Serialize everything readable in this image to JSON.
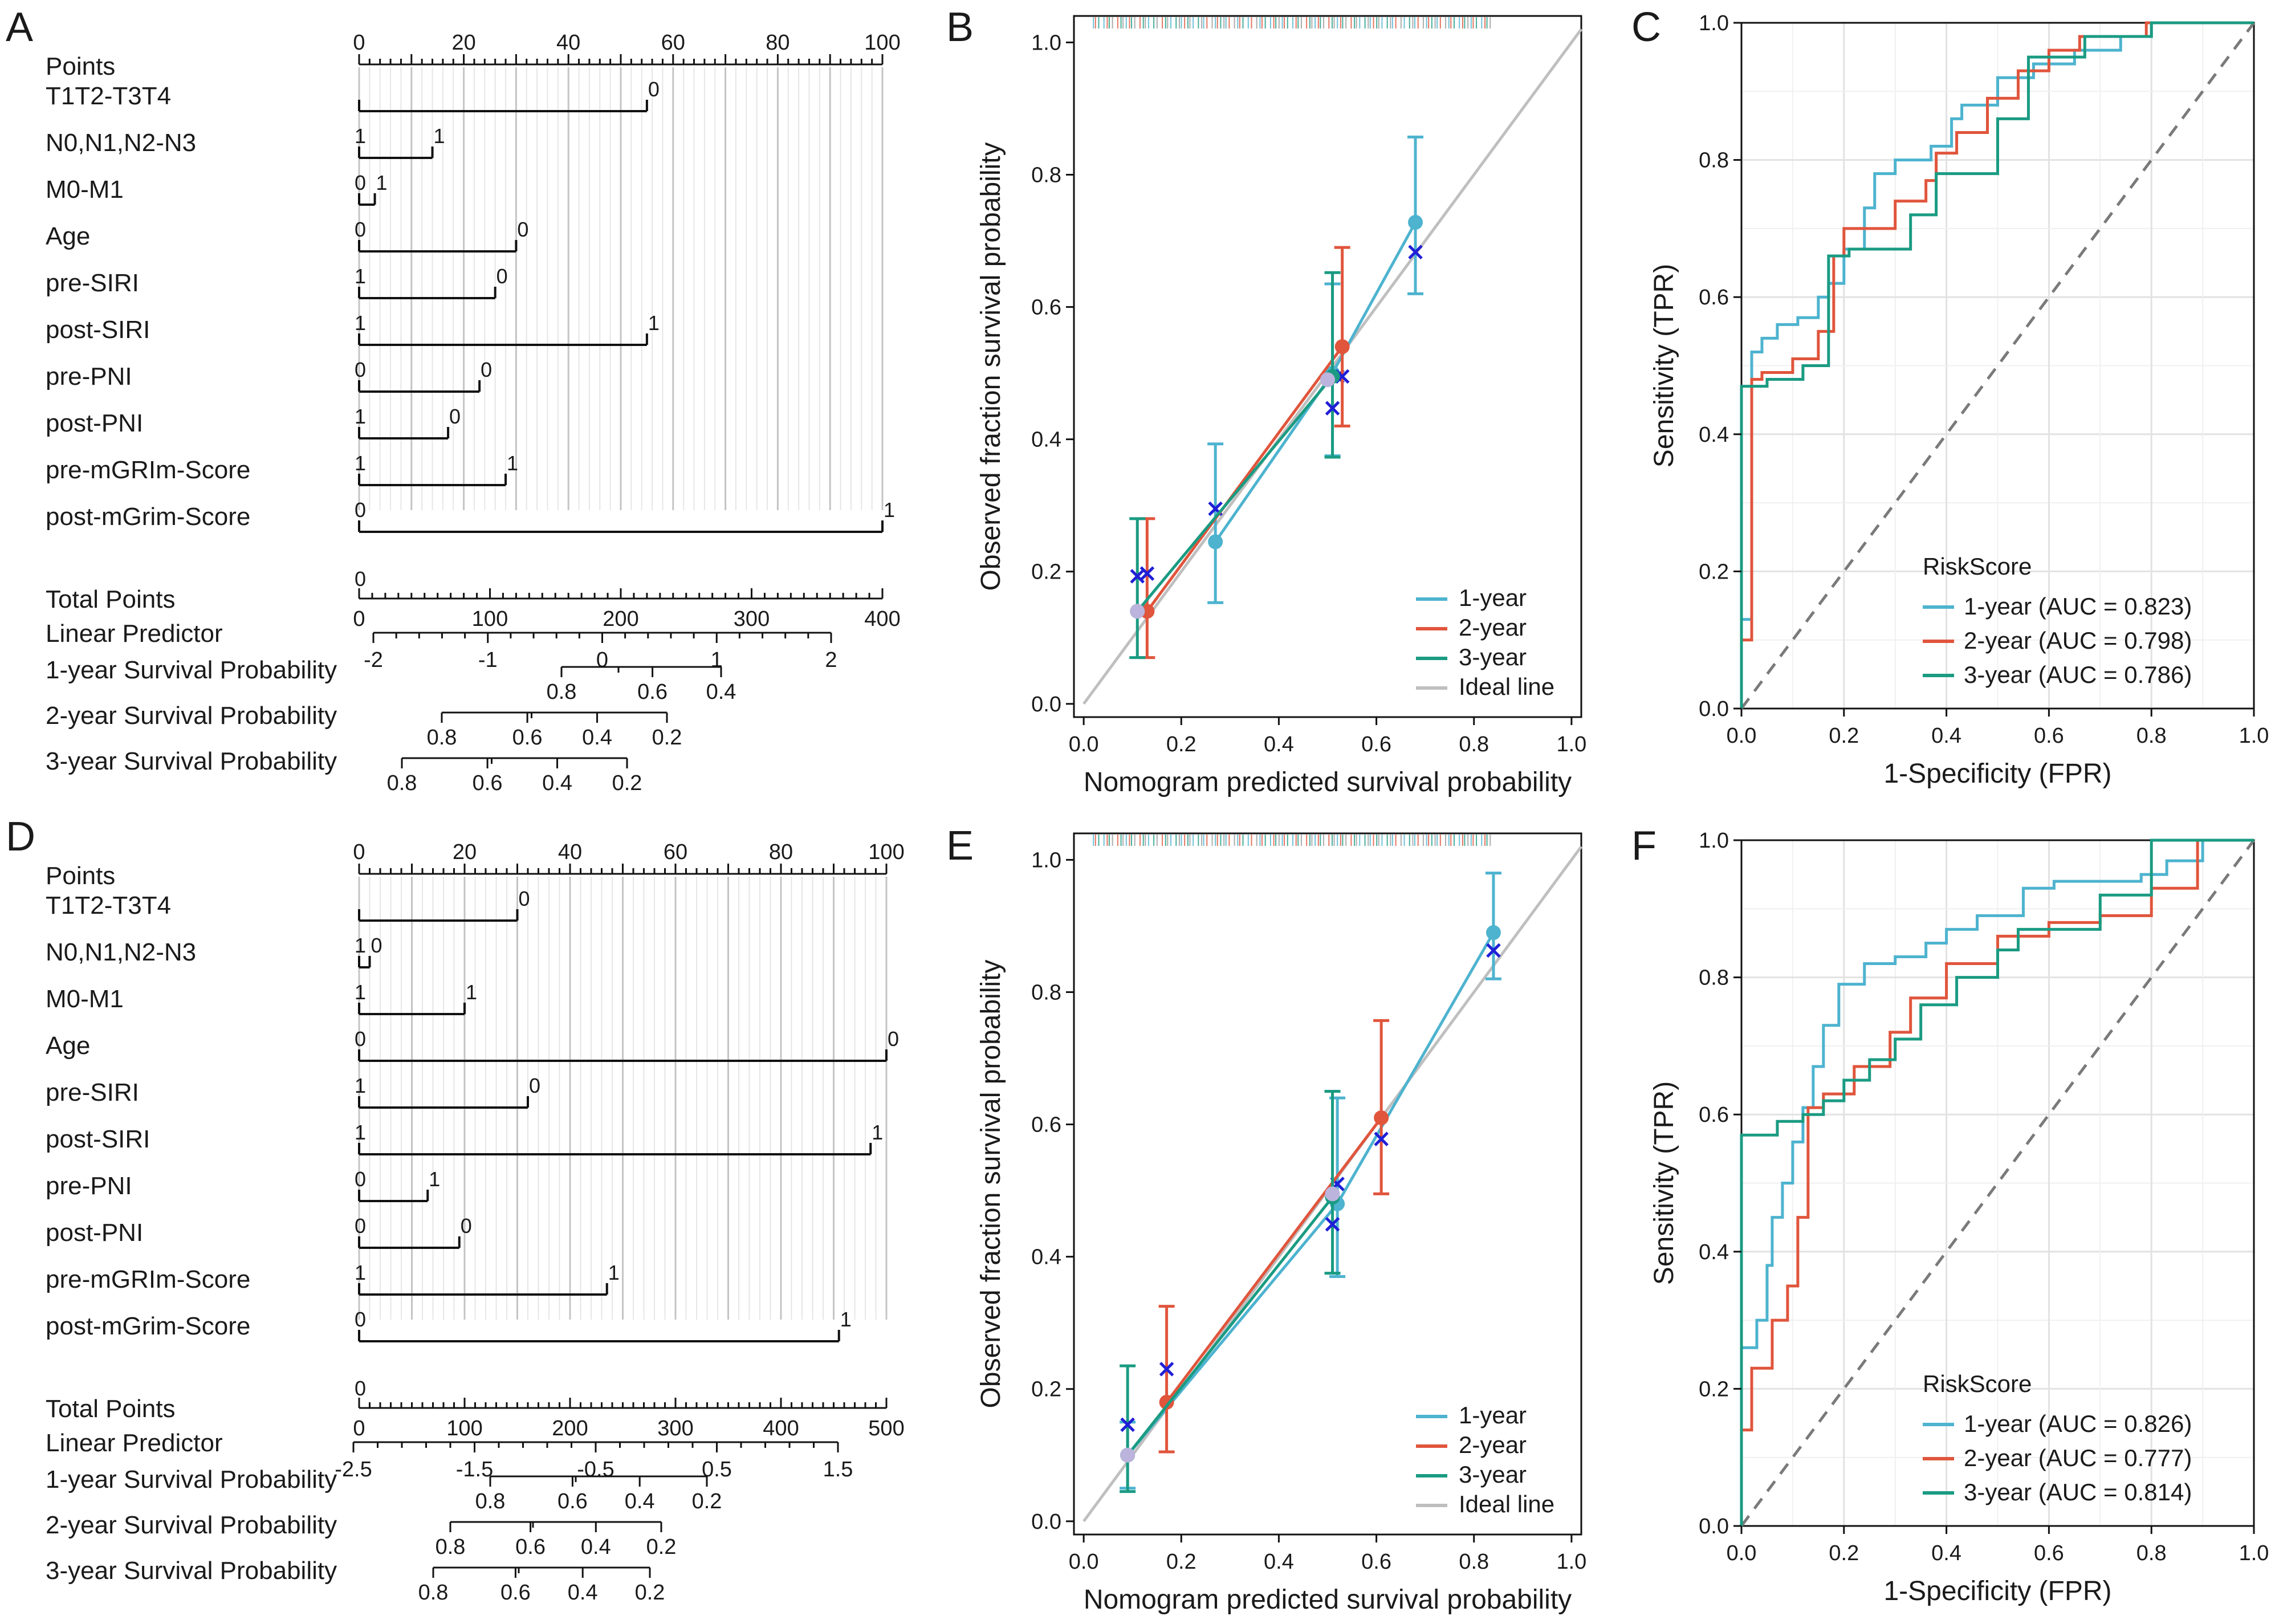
{
  "figure": {
    "panels": [
      "A",
      "B",
      "C",
      "D",
      "E",
      "F"
    ]
  },
  "colors": {
    "series_1y": "#4db3cf",
    "series_2y": "#e0553c",
    "series_3y": "#1a9b82",
    "ideal_line": "#bfbfbf",
    "diagonal": "#7a7a7a",
    "mean_marker": "#bcb4dc",
    "kaplan_marker": "#1f1fd6",
    "grid": "#e2e2e2",
    "nomogram_grid": "#cfcfcf"
  },
  "chart_data": [
    {
      "panel": "A",
      "type": "nomogram",
      "points_axis": {
        "range": [
          0,
          100
        ],
        "labels": [
          "0",
          "20",
          "40",
          "60",
          "80",
          "100"
        ]
      },
      "variables": [
        {
          "name": "T1T2-T3T4",
          "max_points": 55,
          "left_label": "",
          "right_label": "0"
        },
        {
          "name": "N0,N1,N2-N3",
          "max_points": 14,
          "left_label": "1",
          "right_label": "1"
        },
        {
          "name": "M0-M1",
          "max_points": 3,
          "left_label": "0",
          "right_label": "1"
        },
        {
          "name": "Age",
          "max_points": 30,
          "left_label": "0",
          "right_label": "0"
        },
        {
          "name": "pre-SIRI",
          "max_points": 26,
          "left_label": "1",
          "right_label": "0"
        },
        {
          "name": "post-SIRI",
          "max_points": 55,
          "left_label": "1",
          "right_label": "1"
        },
        {
          "name": "pre-PNI",
          "max_points": 23,
          "left_label": "0",
          "right_label": "0"
        },
        {
          "name": "post-PNI",
          "max_points": 17,
          "left_label": "1",
          "right_label": "0"
        },
        {
          "name": "pre-mGRIm-Score",
          "max_points": 28,
          "left_label": "1",
          "right_label": "1"
        },
        {
          "name": "post-mGrim-Score",
          "max_points": 100,
          "left_label": "0",
          "right_label": "1"
        }
      ],
      "total_points": {
        "name": "Total Points",
        "range": [
          0,
          400
        ],
        "labels": [
          "0",
          "100",
          "200",
          "300",
          "400"
        ],
        "left_label": "0"
      },
      "linear_predictor": {
        "name": "Linear Predictor",
        "range": [
          -2,
          2
        ],
        "labels": [
          "-2",
          "-1",
          "0",
          "1",
          "2"
        ]
      },
      "survival_scales": [
        {
          "name": "1-year Survival Probability",
          "labels": [
            "0.8",
            "0.6",
            "0.4"
          ]
        },
        {
          "name": "2-year Survival Probability",
          "labels": [
            "0.8",
            "0.6",
            "0.4",
            "0.2"
          ]
        },
        {
          "name": "3-year Survival Probability",
          "labels": [
            "0.8",
            "0.6",
            "0.4",
            "0.2"
          ]
        }
      ]
    },
    {
      "panel": "B",
      "type": "line",
      "subtype": "calibration",
      "xlabel": "Nomogram predicted survival probability",
      "ylabel": "Observed fraction survival probability",
      "xlim": [
        -0.02,
        1.02
      ],
      "ylim": [
        -0.02,
        1.04
      ],
      "xticks": [
        "0.0",
        "0.2",
        "0.4",
        "0.6",
        "0.8",
        "1.0"
      ],
      "yticks": [
        "0.0",
        "0.2",
        "0.4",
        "0.6",
        "0.8",
        "1.0"
      ],
      "series": [
        {
          "name": "1-year",
          "color_key": "series_1y",
          "x": [
            0.27,
            0.51,
            0.68
          ],
          "y": [
            0.245,
            0.5,
            0.728
          ],
          "err_low": [
            0.153,
            0.375,
            0.62
          ],
          "err_high": [
            0.393,
            0.635,
            0.857
          ],
          "kaplan": [
            [
              0.27,
              0.295
            ],
            [
              0.52,
              0.495
            ],
            [
              0.68,
              0.683
            ]
          ]
        },
        {
          "name": "2-year",
          "color_key": "series_2y",
          "x": [
            0.13,
            0.53
          ],
          "y": [
            0.14,
            0.54
          ],
          "err_low": [
            0.07,
            0.42
          ],
          "err_high": [
            0.28,
            0.69
          ],
          "kaplan": [
            [
              0.13,
              0.197
            ],
            [
              0.53,
              0.495
            ]
          ]
        },
        {
          "name": "3-year",
          "color_key": "series_3y",
          "x": [
            0.11,
            0.51
          ],
          "y": [
            0.14,
            0.495
          ],
          "err_low": [
            0.07,
            0.373
          ],
          "err_high": [
            0.28,
            0.652
          ],
          "kaplan": [
            [
              0.11,
              0.193
            ],
            [
              0.51,
              0.447
            ]
          ]
        }
      ],
      "mean_points": [
        [
          0.11,
          0.14
        ],
        [
          0.5,
          0.49
        ]
      ],
      "legend": [
        "1-year",
        "2-year",
        "3-year",
        "Ideal line"
      ]
    },
    {
      "panel": "C",
      "type": "line",
      "subtype": "roc",
      "xlabel": "1-Specificity (FPR)",
      "ylabel": "Sensitivity (TPR)",
      "xlim": [
        0,
        1
      ],
      "ylim": [
        0,
        1
      ],
      "xticks": [
        "0.0",
        "0.2",
        "0.4",
        "0.6",
        "0.8",
        "1.0"
      ],
      "yticks": [
        "0.0",
        "0.2",
        "0.4",
        "0.6",
        "0.8",
        "1.0"
      ],
      "legend_title": "RiskScore",
      "series": [
        {
          "name": "1-year (AUC = 0.823)",
          "color_key": "series_1y",
          "x": [
            0,
            0,
            0.02,
            0.02,
            0.04,
            0.04,
            0.07,
            0.07,
            0.11,
            0.11,
            0.15,
            0.15,
            0.17,
            0.17,
            0.2,
            0.2,
            0.24,
            0.24,
            0.26,
            0.26,
            0.3,
            0.3,
            0.37,
            0.37,
            0.41,
            0.41,
            0.43,
            0.43,
            0.46,
            0.46,
            0.5,
            0.5,
            0.57,
            0.57,
            0.65,
            0.65,
            0.74,
            0.74,
            0.8,
            0.8,
            1
          ],
          "y": [
            0,
            0.13,
            0.13,
            0.52,
            0.52,
            0.54,
            0.54,
            0.56,
            0.56,
            0.57,
            0.57,
            0.6,
            0.6,
            0.62,
            0.62,
            0.67,
            0.67,
            0.73,
            0.73,
            0.78,
            0.78,
            0.8,
            0.8,
            0.82,
            0.82,
            0.86,
            0.86,
            0.88,
            0.88,
            0.88,
            0.88,
            0.92,
            0.92,
            0.94,
            0.94,
            0.96,
            0.96,
            0.98,
            0.98,
            1,
            1
          ]
        },
        {
          "name": "2-year (AUC = 0.798)",
          "color_key": "series_2y",
          "x": [
            0,
            0,
            0.02,
            0.02,
            0.04,
            0.04,
            0.1,
            0.1,
            0.15,
            0.15,
            0.18,
            0.18,
            0.2,
            0.2,
            0.26,
            0.26,
            0.3,
            0.3,
            0.36,
            0.36,
            0.38,
            0.38,
            0.42,
            0.42,
            0.48,
            0.48,
            0.54,
            0.54,
            0.6,
            0.6,
            0.66,
            0.66,
            0.79,
            0.79,
            1
          ],
          "y": [
            0,
            0.1,
            0.1,
            0.48,
            0.48,
            0.49,
            0.49,
            0.51,
            0.51,
            0.55,
            0.55,
            0.66,
            0.66,
            0.7,
            0.7,
            0.7,
            0.7,
            0.74,
            0.74,
            0.77,
            0.77,
            0.81,
            0.81,
            0.84,
            0.84,
            0.89,
            0.89,
            0.93,
            0.93,
            0.96,
            0.96,
            0.98,
            0.98,
            1,
            1
          ]
        },
        {
          "name": "3-year (AUC = 0.786)",
          "color_key": "series_3y",
          "x": [
            0,
            0,
            0.05,
            0.05,
            0.12,
            0.12,
            0.17,
            0.17,
            0.21,
            0.21,
            0.33,
            0.33,
            0.38,
            0.38,
            0.5,
            0.5,
            0.56,
            0.56,
            0.67,
            0.67,
            0.8,
            0.8,
            1
          ],
          "y": [
            0,
            0.47,
            0.47,
            0.48,
            0.48,
            0.5,
            0.5,
            0.66,
            0.66,
            0.67,
            0.67,
            0.72,
            0.72,
            0.78,
            0.78,
            0.86,
            0.86,
            0.95,
            0.95,
            0.98,
            0.98,
            1,
            1
          ]
        }
      ]
    },
    {
      "panel": "D",
      "type": "nomogram",
      "points_axis": {
        "range": [
          0,
          100
        ],
        "labels": [
          "0",
          "20",
          "40",
          "60",
          "80",
          "100"
        ]
      },
      "variables": [
        {
          "name": "T1T2-T3T4",
          "max_points": 30,
          "left_label": "",
          "right_label": "0"
        },
        {
          "name": "N0,N1,N2-N3",
          "max_points": 2,
          "left_label": "1",
          "right_label": "0"
        },
        {
          "name": "M0-M1",
          "max_points": 20,
          "left_label": "1",
          "right_label": "1"
        },
        {
          "name": "Age",
          "max_points": 100,
          "left_label": "0",
          "right_label": "0"
        },
        {
          "name": "pre-SIRI",
          "max_points": 32,
          "left_label": "1",
          "right_label": "0"
        },
        {
          "name": "post-SIRI",
          "max_points": 97,
          "left_label": "1",
          "right_label": "1"
        },
        {
          "name": "pre-PNI",
          "max_points": 13,
          "left_label": "0",
          "right_label": "1"
        },
        {
          "name": "post-PNI",
          "max_points": 19,
          "left_label": "0",
          "right_label": "0"
        },
        {
          "name": "pre-mGRIm-Score",
          "max_points": 47,
          "left_label": "1",
          "right_label": "1"
        },
        {
          "name": "post-mGrim-Score",
          "max_points": 91,
          "left_label": "0",
          "right_label": "1"
        }
      ],
      "total_points": {
        "name": "Total Points",
        "range": [
          0,
          500
        ],
        "labels": [
          "0",
          "100",
          "200",
          "300",
          "400",
          "500"
        ],
        "left_label": "0"
      },
      "linear_predictor": {
        "name": "Linear Predictor",
        "range": [
          -2.5,
          1.5
        ],
        "labels": [
          "-2.5",
          "-1.5",
          "-0.5",
          "0.5",
          "1.5"
        ]
      },
      "survival_scales": [
        {
          "name": "1-year Survival Probability",
          "labels": [
            "0.8",
            "0.6",
            "0.4",
            "0.2"
          ]
        },
        {
          "name": "2-year Survival Probability",
          "labels": [
            "0.8",
            "0.6",
            "0.4",
            "0.2"
          ]
        },
        {
          "name": "3-year Survival Probability",
          "labels": [
            "0.8",
            "0.6",
            "0.4",
            "0.2"
          ]
        }
      ]
    },
    {
      "panel": "E",
      "type": "line",
      "subtype": "calibration",
      "xlabel": "Nomogram predicted survival probability",
      "ylabel": "Observed fraction survival probability",
      "xlim": [
        -0.02,
        1.02
      ],
      "ylim": [
        -0.02,
        1.04
      ],
      "xticks": [
        "0.0",
        "0.2",
        "0.4",
        "0.6",
        "0.8",
        "1.0"
      ],
      "yticks": [
        "0.0",
        "0.2",
        "0.4",
        "0.6",
        "0.8",
        "1.0"
      ],
      "series": [
        {
          "name": "1-year",
          "color_key": "series_1y",
          "x": [
            0.09,
            0.52,
            0.84
          ],
          "y": [
            0.1,
            0.48,
            0.89
          ],
          "err_low": [
            0.05,
            0.37,
            0.82
          ],
          "err_high": [
            0.15,
            0.64,
            0.98
          ],
          "kaplan": [
            [
              0.52,
              0.51
            ],
            [
              0.84,
              0.863
            ]
          ]
        },
        {
          "name": "2-year",
          "color_key": "series_2y",
          "x": [
            0.17,
            0.61
          ],
          "y": [
            0.18,
            0.61
          ],
          "err_low": [
            0.105,
            0.495
          ],
          "err_high": [
            0.325,
            0.757
          ],
          "kaplan": [
            [
              0.17,
              0.23
            ],
            [
              0.61,
              0.578
            ]
          ]
        },
        {
          "name": "3-year",
          "color_key": "series_3y",
          "x": [
            0.09,
            0.51
          ],
          "y": [
            0.1,
            0.49
          ],
          "err_low": [
            0.045,
            0.375
          ],
          "err_high": [
            0.235,
            0.65
          ],
          "kaplan": [
            [
              0.09,
              0.146
            ],
            [
              0.51,
              0.449
            ]
          ]
        }
      ],
      "mean_points": [
        [
          0.09,
          0.1
        ],
        [
          0.51,
          0.495
        ]
      ],
      "legend": [
        "1-year",
        "2-year",
        "3-year",
        "Ideal line"
      ]
    },
    {
      "panel": "F",
      "type": "line",
      "subtype": "roc",
      "xlabel": "1-Specificity (FPR)",
      "ylabel": "Sensitivity (TPR)",
      "xlim": [
        0,
        1
      ],
      "ylim": [
        0,
        1
      ],
      "xticks": [
        "0.0",
        "0.2",
        "0.4",
        "0.6",
        "0.8",
        "1.0"
      ],
      "yticks": [
        "0.0",
        "0.2",
        "0.4",
        "0.6",
        "0.8",
        "1.0"
      ],
      "legend_title": "RiskScore",
      "series": [
        {
          "name": "1-year (AUC = 0.826)",
          "color_key": "series_1y",
          "x": [
            0,
            0,
            0.03,
            0.03,
            0.05,
            0.05,
            0.06,
            0.06,
            0.08,
            0.08,
            0.1,
            0.1,
            0.12,
            0.12,
            0.14,
            0.14,
            0.16,
            0.16,
            0.19,
            0.19,
            0.24,
            0.24,
            0.3,
            0.3,
            0.36,
            0.36,
            0.4,
            0.4,
            0.46,
            0.46,
            0.55,
            0.55,
            0.61,
            0.61,
            0.78,
            0.78,
            0.83,
            0.83,
            0.9,
            0.9,
            1
          ],
          "y": [
            0,
            0.26,
            0.26,
            0.3,
            0.3,
            0.38,
            0.38,
            0.45,
            0.45,
            0.5,
            0.5,
            0.56,
            0.56,
            0.61,
            0.61,
            0.67,
            0.67,
            0.73,
            0.73,
            0.79,
            0.79,
            0.82,
            0.82,
            0.83,
            0.83,
            0.85,
            0.85,
            0.87,
            0.87,
            0.89,
            0.89,
            0.93,
            0.93,
            0.94,
            0.94,
            0.95,
            0.95,
            0.97,
            0.97,
            1,
            1
          ]
        },
        {
          "name": "2-year (AUC = 0.777)",
          "color_key": "series_2y",
          "x": [
            0,
            0,
            0.02,
            0.02,
            0.06,
            0.06,
            0.09,
            0.09,
            0.11,
            0.11,
            0.13,
            0.13,
            0.16,
            0.16,
            0.22,
            0.22,
            0.29,
            0.29,
            0.33,
            0.33,
            0.4,
            0.4,
            0.5,
            0.5,
            0.6,
            0.6,
            0.7,
            0.7,
            0.8,
            0.8,
            0.89,
            0.89,
            1
          ],
          "y": [
            0,
            0.14,
            0.14,
            0.23,
            0.23,
            0.3,
            0.3,
            0.35,
            0.35,
            0.45,
            0.45,
            0.61,
            0.61,
            0.63,
            0.63,
            0.67,
            0.67,
            0.72,
            0.72,
            0.77,
            0.77,
            0.82,
            0.82,
            0.86,
            0.86,
            0.88,
            0.88,
            0.89,
            0.89,
            0.93,
            0.93,
            1,
            1
          ]
        },
        {
          "name": "3-year (AUC = 0.814)",
          "color_key": "series_3y",
          "x": [
            0,
            0,
            0.07,
            0.07,
            0.12,
            0.12,
            0.16,
            0.16,
            0.2,
            0.2,
            0.25,
            0.25,
            0.3,
            0.3,
            0.35,
            0.35,
            0.42,
            0.42,
            0.5,
            0.5,
            0.54,
            0.54,
            0.7,
            0.7,
            0.8,
            0.8,
            1
          ],
          "y": [
            0,
            0.57,
            0.57,
            0.59,
            0.59,
            0.6,
            0.6,
            0.62,
            0.62,
            0.65,
            0.65,
            0.68,
            0.68,
            0.71,
            0.71,
            0.76,
            0.76,
            0.8,
            0.8,
            0.84,
            0.84,
            0.87,
            0.87,
            0.92,
            0.92,
            1,
            1
          ]
        }
      ]
    }
  ]
}
